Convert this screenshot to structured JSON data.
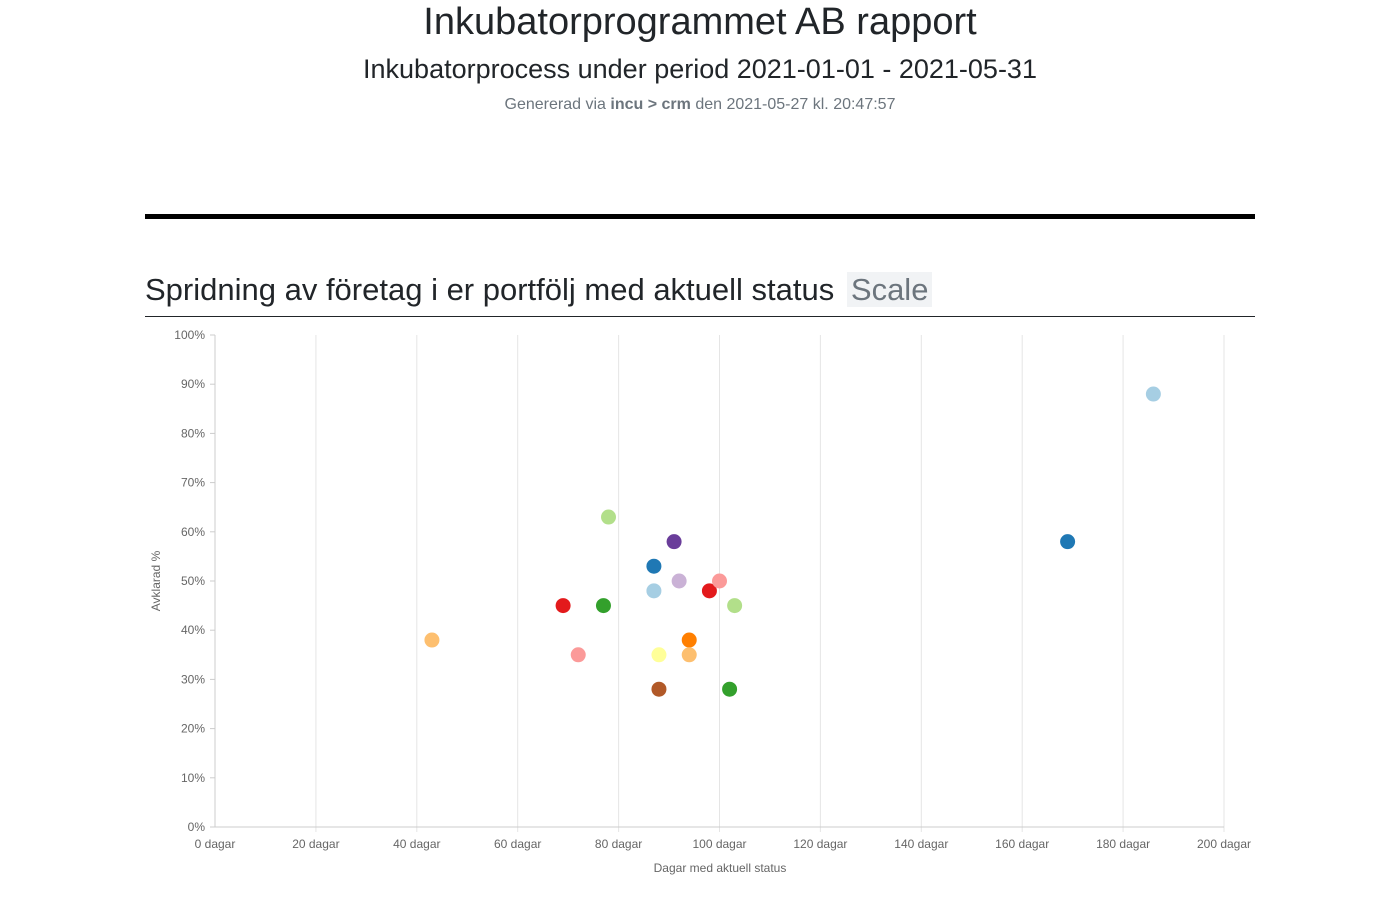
{
  "header": {
    "title": "Inkubatorprogrammet AB rapport",
    "subtitle": "Inkubatorprocess under period 2021-01-01 - 2021-05-31",
    "generated_prefix": "Genererad via",
    "generated_source": "incu > crm",
    "generated_suffix": "den 2021-05-27 kl. 20:47:57"
  },
  "section": {
    "title": "Spridning av företag i er portfölj med aktuell status",
    "badge": "Scale"
  },
  "chart_data": {
    "type": "scatter",
    "xlabel": "Dagar med aktuell status",
    "ylabel": "Avklarad %",
    "xlim": [
      0,
      200
    ],
    "ylim": [
      0,
      100
    ],
    "x_ticks": [
      0,
      20,
      40,
      60,
      80,
      100,
      120,
      140,
      160,
      180,
      200
    ],
    "x_tick_labels": [
      "0 dagar",
      "20 dagar",
      "40 dagar",
      "60 dagar",
      "80 dagar",
      "100 dagar",
      "120 dagar",
      "140 dagar",
      "160 dagar",
      "180 dagar",
      "200 dagar"
    ],
    "y_ticks": [
      0,
      10,
      20,
      30,
      40,
      50,
      60,
      70,
      80,
      90,
      100
    ],
    "y_tick_labels": [
      "0%",
      "10%",
      "20%",
      "30%",
      "40%",
      "50%",
      "60%",
      "70%",
      "80%",
      "90%",
      "100%"
    ],
    "grid": "vertical",
    "points": [
      {
        "x": 43,
        "y": 38,
        "color": "#fdbf6f"
      },
      {
        "x": 69,
        "y": 45,
        "color": "#e31a1c"
      },
      {
        "x": 72,
        "y": 35,
        "color": "#fb9a99"
      },
      {
        "x": 77,
        "y": 45,
        "color": "#33a02c"
      },
      {
        "x": 78,
        "y": 63,
        "color": "#b2df8a"
      },
      {
        "x": 87,
        "y": 53,
        "color": "#1f78b4"
      },
      {
        "x": 87,
        "y": 48,
        "color": "#a6cee3"
      },
      {
        "x": 88,
        "y": 35,
        "color": "#ffff99"
      },
      {
        "x": 88,
        "y": 28,
        "color": "#b15928"
      },
      {
        "x": 91,
        "y": 58,
        "color": "#6a3d9a"
      },
      {
        "x": 92,
        "y": 50,
        "color": "#cab2d6"
      },
      {
        "x": 94,
        "y": 38,
        "color": "#ff7f00"
      },
      {
        "x": 94,
        "y": 35,
        "color": "#fdbf6f"
      },
      {
        "x": 98,
        "y": 48,
        "color": "#e31a1c"
      },
      {
        "x": 100,
        "y": 50,
        "color": "#fb9a99"
      },
      {
        "x": 102,
        "y": 28,
        "color": "#33a02c"
      },
      {
        "x": 103,
        "y": 45,
        "color": "#b2df8a"
      },
      {
        "x": 169,
        "y": 58,
        "color": "#1f78b4"
      },
      {
        "x": 186,
        "y": 88,
        "color": "#a6cee3"
      }
    ]
  }
}
